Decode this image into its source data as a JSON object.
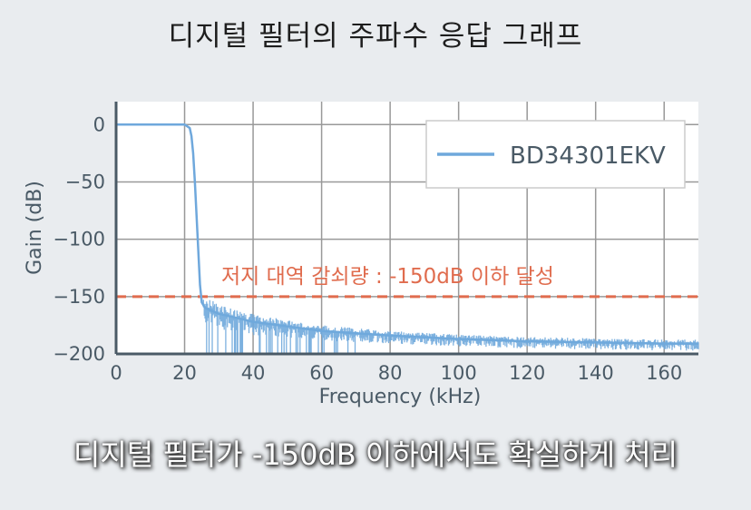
{
  "title": "디지털 필터의 주파수 응답 그래프",
  "caption": "디지털 필터가 -150dB 이하에서도 확실하게 처리",
  "colors": {
    "series": "#6fa8dc",
    "threshold": "#e06c4e",
    "axis_text": "#4a5a66",
    "grid": "#999999"
  },
  "chart_data": {
    "type": "line",
    "xlabel": "Frequency (kHz)",
    "ylabel": "Gain (dB)",
    "xlim": [
      0,
      170
    ],
    "ylim": [
      -200,
      20
    ],
    "xticks": [
      "0",
      "20",
      "40",
      "60",
      "80",
      "100",
      "120",
      "140",
      "160"
    ],
    "yticks": [
      "0",
      "−50",
      "−100",
      "−150",
      "−200"
    ],
    "grid": true,
    "legend_position": "top-right",
    "series": [
      {
        "name": "BD34301EKV",
        "x": [
          0,
          20,
          21.5,
          22,
          22.5,
          23,
          23.5,
          24,
          24.5,
          25,
          26,
          30,
          40,
          60,
          80,
          100,
          120,
          140,
          160,
          170
        ],
        "y": [
          0,
          0,
          -3,
          -10,
          -25,
          -50,
          -80,
          -110,
          -140,
          -155,
          -160,
          -165,
          -172,
          -180,
          -184,
          -187,
          -189,
          -190,
          -191,
          -191
        ]
      }
    ],
    "threshold": {
      "y": -150,
      "label": "저지 대역 감쇠량 : -150dB 이하 달성"
    }
  }
}
